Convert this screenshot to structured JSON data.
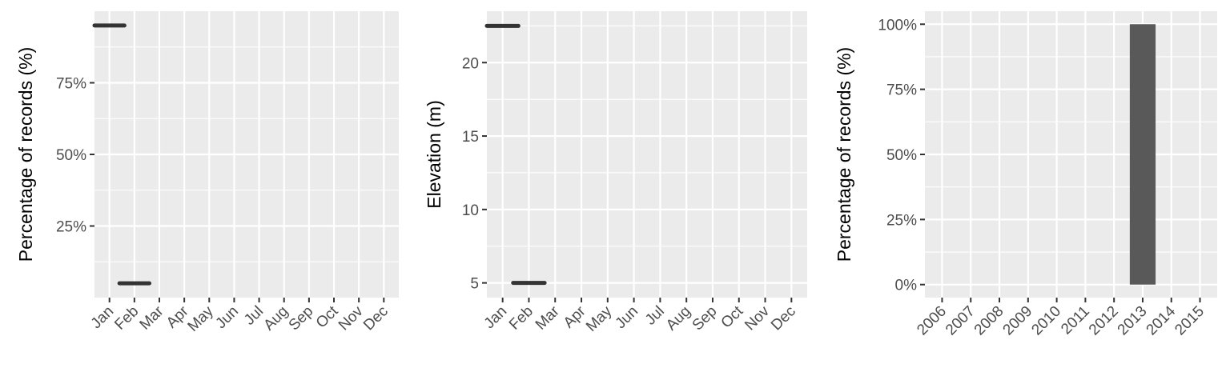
{
  "chart_data": [
    {
      "type": "line",
      "title": "",
      "xlabel": "",
      "ylabel": "Percentage of records (%)",
      "categories": [
        "Jan",
        "Feb",
        "Mar",
        "Apr",
        "May",
        "Jun",
        "Jul",
        "Aug",
        "Sep",
        "Oct",
        "Nov",
        "Dec"
      ],
      "ylim": [
        0,
        100
      ],
      "yticks": [
        25,
        50,
        75
      ],
      "ytick_labels": [
        "25%",
        "50%",
        "75%"
      ],
      "series": [
        {
          "values": [
            95,
            5,
            null,
            null,
            null,
            null,
            null,
            null,
            null,
            null,
            null,
            null
          ]
        }
      ],
      "grid": true,
      "colors": {
        "mark": "#333333",
        "panel": "#ebebeb",
        "grid": "#ffffff"
      }
    },
    {
      "type": "line",
      "title": "",
      "xlabel": "",
      "ylabel": "Elevation (m)",
      "categories": [
        "Jan",
        "Feb",
        "Mar",
        "Apr",
        "May",
        "Jun",
        "Jul",
        "Aug",
        "Sep",
        "Oct",
        "Nov",
        "Dec"
      ],
      "ylim": [
        4,
        23.5
      ],
      "yticks": [
        5,
        10,
        15,
        20
      ],
      "ytick_labels": [
        "5",
        "10",
        "15",
        "20"
      ],
      "series": [
        {
          "values": [
            22.5,
            5,
            null,
            null,
            null,
            null,
            null,
            null,
            null,
            null,
            null,
            null
          ]
        }
      ],
      "grid": true,
      "colors": {
        "mark": "#333333",
        "panel": "#ebebeb",
        "grid": "#ffffff"
      }
    },
    {
      "type": "bar",
      "title": "",
      "xlabel": "",
      "ylabel": "Percentage of records (%)",
      "categories": [
        "2006",
        "2007",
        "2008",
        "2009",
        "2010",
        "2011",
        "2012",
        "2013",
        "2014",
        "2015"
      ],
      "values": [
        0,
        0,
        0,
        0,
        0,
        0,
        0,
        100,
        0,
        0
      ],
      "ylim": [
        -5,
        105
      ],
      "yticks": [
        0,
        25,
        50,
        75,
        100
      ],
      "ytick_labels": [
        "0%",
        "25%",
        "50%",
        "75%",
        "100%"
      ],
      "grid": true,
      "colors": {
        "bar": "#595959",
        "panel": "#ebebeb",
        "grid": "#ffffff"
      }
    }
  ]
}
